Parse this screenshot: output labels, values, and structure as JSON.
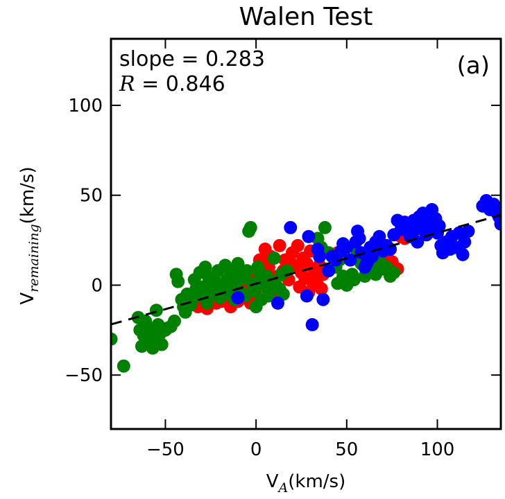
{
  "chart_data": {
    "type": "scatter",
    "title": "Walen Test",
    "xlabel": {
      "base": "V",
      "sub": "A",
      "unit": "(km/s)"
    },
    "ylabel": {
      "base": "V",
      "sub": "remaining",
      "unit": "(km/s)"
    },
    "xlim": [
      -80,
      135
    ],
    "ylim": [
      -80,
      137
    ],
    "xticks": [
      -50,
      0,
      50,
      100
    ],
    "yticks": [
      -50,
      0,
      50,
      100
    ],
    "xtick_labels": [
      "−50",
      "0",
      "50",
      "100"
    ],
    "ytick_labels": [
      "−50",
      "0",
      "50",
      "100"
    ],
    "grid": false,
    "annotations": {
      "slope": "slope = 0.283",
      "r_symbol": "R",
      "r_value": " = 0.846",
      "panel": "(a)"
    },
    "fit_line": {
      "slope": 0.283,
      "intercept": 0.8,
      "style": "dashed",
      "color": "#000000"
    },
    "series": [
      {
        "color": "#ff0000",
        "points": [
          [
            -32,
            -12
          ],
          [
            -30,
            -5
          ],
          [
            -28,
            -8
          ],
          [
            -27,
            -13
          ],
          [
            -25,
            -7
          ],
          [
            -23,
            -2
          ],
          [
            -22,
            -10
          ],
          [
            -20,
            -4
          ],
          [
            -19,
            -9
          ],
          [
            -17,
            -3
          ],
          [
            -15,
            -8
          ],
          [
            -14,
            -12
          ],
          [
            -12,
            -5
          ],
          [
            -11,
            -1
          ],
          [
            -10,
            -9
          ],
          [
            -8,
            -3
          ],
          [
            -7,
            -7
          ],
          [
            -5,
            2
          ],
          [
            -4,
            -4
          ],
          [
            -3,
            -10
          ],
          [
            -1,
            4
          ],
          [
            0,
            -6
          ],
          [
            1,
            9
          ],
          [
            2,
            14
          ],
          [
            3,
            5
          ],
          [
            5,
            20
          ],
          [
            7,
            10
          ],
          [
            8,
            16
          ],
          [
            10,
            -4
          ],
          [
            12,
            5
          ],
          [
            13,
            22
          ],
          [
            15,
            8
          ],
          [
            16,
            14
          ],
          [
            18,
            3
          ],
          [
            20,
            18
          ],
          [
            21,
            11
          ],
          [
            23,
            22
          ],
          [
            24,
            -1
          ],
          [
            25,
            7
          ],
          [
            26,
            15
          ],
          [
            27,
            4
          ],
          [
            28,
            12
          ],
          [
            29,
            -4
          ],
          [
            30,
            19
          ],
          [
            31,
            2
          ],
          [
            32,
            9
          ],
          [
            33,
            5
          ],
          [
            34,
            0
          ],
          [
            35,
            11
          ],
          [
            36,
            -2
          ],
          [
            37,
            6
          ],
          [
            45,
            18
          ],
          [
            55,
            15
          ],
          [
            60,
            16
          ],
          [
            68,
            11
          ],
          [
            72,
            16
          ],
          [
            75,
            13
          ],
          [
            78,
            9
          ],
          [
            80,
            27
          ],
          [
            82,
            26
          ]
        ]
      },
      {
        "color": "#008000",
        "points": [
          [
            -80,
            -30
          ],
          [
            -73,
            -45
          ],
          [
            -65,
            -18
          ],
          [
            -64,
            -25
          ],
          [
            -63,
            -34
          ],
          [
            -62,
            -28
          ],
          [
            -61,
            -20
          ],
          [
            -60,
            -23
          ],
          [
            -59,
            -31
          ],
          [
            -58,
            -26
          ],
          [
            -57,
            -35
          ],
          [
            -56,
            -30
          ],
          [
            -55,
            -14
          ],
          [
            -54,
            -22
          ],
          [
            -53,
            -27
          ],
          [
            -52,
            -33
          ],
          [
            -50,
            -25
          ],
          [
            -49,
            -24
          ],
          [
            -47,
            -23
          ],
          [
            -45,
            -20
          ],
          [
            -44,
            6
          ],
          [
            -43,
            2
          ],
          [
            -41,
            -8
          ],
          [
            -40,
            -12
          ],
          [
            -39,
            -15
          ],
          [
            -38,
            -5
          ],
          [
            -36,
            -11
          ],
          [
            -35,
            -8
          ],
          [
            -34,
            3
          ],
          [
            -33,
            -2
          ],
          [
            -31,
            7
          ],
          [
            -30,
            -6
          ],
          [
            -29,
            -1
          ],
          [
            -28,
            10
          ],
          [
            -27,
            -10
          ],
          [
            -26,
            4
          ],
          [
            -25,
            -4
          ],
          [
            -24,
            1
          ],
          [
            -23,
            5
          ],
          [
            -22,
            -3
          ],
          [
            -21,
            8
          ],
          [
            -20,
            -7
          ],
          [
            -19,
            0
          ],
          [
            -18,
            -5
          ],
          [
            -17,
            11
          ],
          [
            -16,
            3
          ],
          [
            -15,
            9
          ],
          [
            -14,
            -2
          ],
          [
            -13,
            5
          ],
          [
            -12,
            -8
          ],
          [
            -11,
            2
          ],
          [
            -10,
            12
          ],
          [
            -9,
            6
          ],
          [
            -8,
            -4
          ],
          [
            -7,
            4
          ],
          [
            -6,
            -6
          ],
          [
            -5,
            8
          ],
          [
            -4,
            30
          ],
          [
            -3,
            32
          ],
          [
            -2,
            1
          ],
          [
            -1,
            -3
          ],
          [
            0,
            -12
          ],
          [
            1,
            10
          ],
          [
            2,
            7
          ],
          [
            3,
            -8
          ],
          [
            4,
            3
          ],
          [
            5,
            -1
          ],
          [
            6,
            5
          ],
          [
            7,
            -6
          ],
          [
            8,
            2
          ],
          [
            10,
            15
          ],
          [
            11,
            0
          ],
          [
            13,
            -2
          ],
          [
            14,
            6
          ],
          [
            15,
            -5
          ],
          [
            17,
            8
          ],
          [
            34,
            26
          ],
          [
            36,
            21
          ],
          [
            38,
            32
          ],
          [
            40,
            18
          ],
          [
            42,
            16
          ],
          [
            44,
            10
          ],
          [
            45,
            1
          ],
          [
            46,
            14
          ],
          [
            48,
            5
          ],
          [
            50,
            0
          ],
          [
            52,
            14
          ],
          [
            53,
            6
          ],
          [
            54,
            3
          ],
          [
            56,
            18
          ],
          [
            58,
            12
          ],
          [
            60,
            5
          ],
          [
            62,
            8
          ],
          [
            64,
            11
          ],
          [
            66,
            6
          ],
          [
            68,
            14
          ],
          [
            70,
            9
          ],
          [
            72,
            10
          ],
          [
            74,
            5
          ],
          [
            76,
            7
          ]
        ]
      },
      {
        "color": "#0000ff",
        "points": [
          [
            -10,
            -7
          ],
          [
            12,
            -10
          ],
          [
            19,
            32
          ],
          [
            28,
            -6
          ],
          [
            29,
            27
          ],
          [
            31,
            -22
          ],
          [
            34,
            20
          ],
          [
            35,
            16
          ],
          [
            37,
            -8
          ],
          [
            40,
            8
          ],
          [
            42,
            16
          ],
          [
            44,
            14
          ],
          [
            47,
            19
          ],
          [
            48,
            23
          ],
          [
            50,
            21
          ],
          [
            52,
            14
          ],
          [
            55,
            24
          ],
          [
            56,
            30
          ],
          [
            57,
            26
          ],
          [
            58,
            18
          ],
          [
            60,
            10
          ],
          [
            61,
            12
          ],
          [
            62,
            14
          ],
          [
            63,
            21
          ],
          [
            64,
            16
          ],
          [
            66,
            24
          ],
          [
            68,
            27
          ],
          [
            70,
            19
          ],
          [
            72,
            22
          ],
          [
            74,
            20
          ],
          [
            76,
            28
          ],
          [
            78,
            36
          ],
          [
            80,
            31
          ],
          [
            82,
            35
          ],
          [
            84,
            30
          ],
          [
            85,
            27
          ],
          [
            86,
            33
          ],
          [
            87,
            36
          ],
          [
            88,
            31
          ],
          [
            89,
            24
          ],
          [
            90,
            38
          ],
          [
            91,
            32
          ],
          [
            92,
            40
          ],
          [
            93,
            30
          ],
          [
            94,
            28
          ],
          [
            95,
            35
          ],
          [
            96,
            33
          ],
          [
            97,
            42
          ],
          [
            98,
            31
          ],
          [
            99,
            37
          ],
          [
            100,
            29
          ],
          [
            101,
            33
          ],
          [
            102,
            22
          ],
          [
            103,
            18
          ],
          [
            105,
            24
          ],
          [
            107,
            20
          ],
          [
            108,
            27
          ],
          [
            110,
            21
          ],
          [
            112,
            29
          ],
          [
            114,
            17
          ],
          [
            115,
            24
          ],
          [
            117,
            30
          ],
          [
            125,
            44
          ],
          [
            127,
            47
          ],
          [
            129,
            42
          ],
          [
            131,
            45
          ],
          [
            133,
            40
          ],
          [
            134,
            38
          ],
          [
            135,
            34
          ]
        ]
      }
    ]
  }
}
